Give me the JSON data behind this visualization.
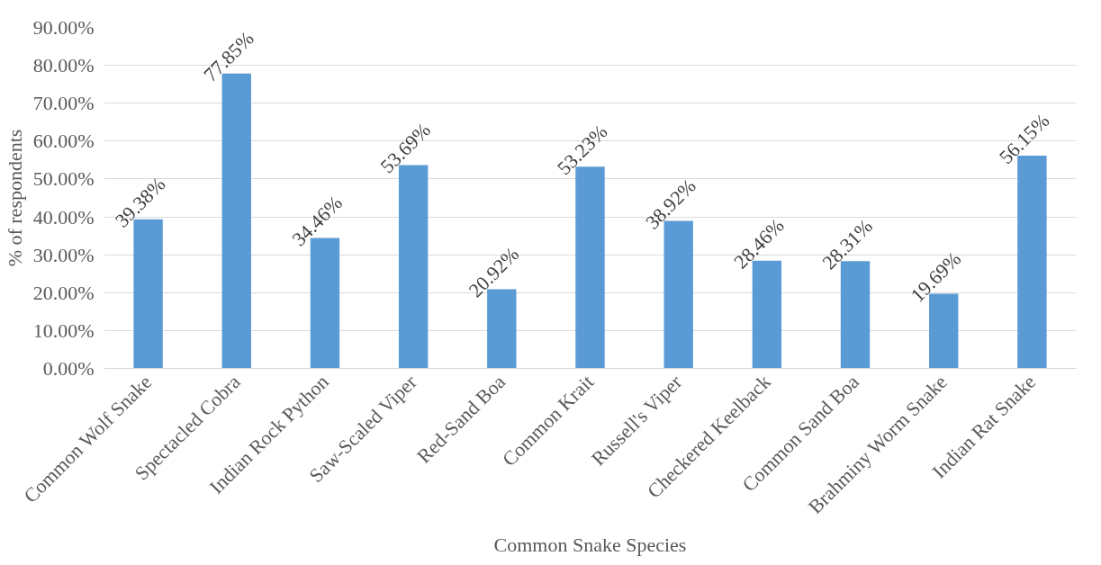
{
  "chart_data": {
    "type": "bar",
    "xlabel": "Common Snake Species",
    "ylabel": "% of respondents",
    "categories": [
      "Common Wolf Snake",
      "Spectacled Cobra",
      "Indian Rock Python",
      "Saw-Scaled Viper",
      "Red-Sand Boa",
      "Common Krait",
      "Russell's Viper",
      "Checkered Keelback",
      "Common Sand Boa",
      "Brahminy Worm Snake",
      "Indian Rat Snake"
    ],
    "values": [
      39.38,
      77.85,
      34.46,
      53.69,
      20.92,
      53.23,
      38.92,
      28.46,
      28.31,
      19.69,
      56.15
    ],
    "value_labels": [
      "39.38%",
      "77.85%",
      "34.46%",
      "53.69%",
      "20.92%",
      "53.23%",
      "38.92%",
      "28.46%",
      "28.31%",
      "19.69%",
      "56.15%"
    ],
    "color": "#5b9bd5",
    "ylim": [
      0,
      90
    ],
    "yticks": [
      {
        "value": 0,
        "label": "0.00%"
      },
      {
        "value": 10,
        "label": "10.00%"
      },
      {
        "value": 20,
        "label": "20.00%"
      },
      {
        "value": 30,
        "label": "30.00%"
      },
      {
        "value": 40,
        "label": "40.00%"
      },
      {
        "value": 50,
        "label": "50.00%"
      },
      {
        "value": 60,
        "label": "60.00%"
      },
      {
        "value": 70,
        "label": "70.00%"
      },
      {
        "value": 80,
        "label": "80.00%"
      },
      {
        "value": 90,
        "label": "90.00%"
      }
    ],
    "grid": "y"
  }
}
